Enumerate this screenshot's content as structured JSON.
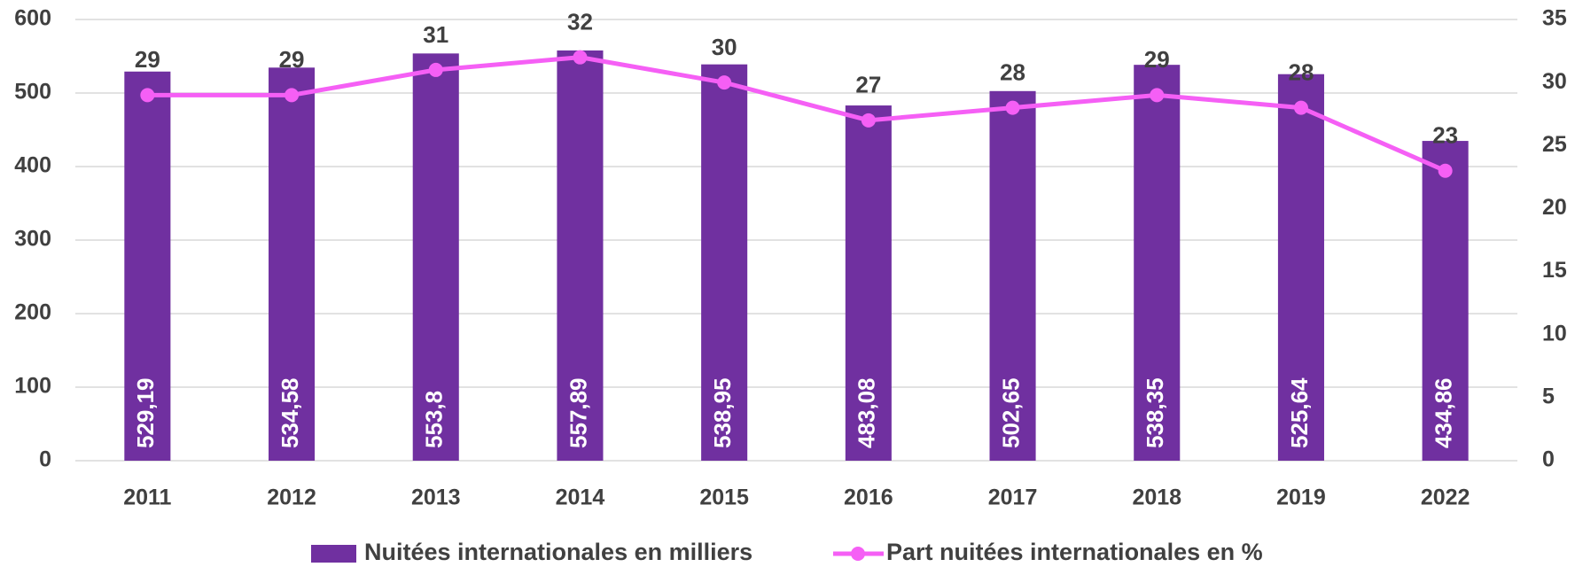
{
  "chart_data": {
    "type": "bar",
    "categories": [
      "2011",
      "2012",
      "2013",
      "2014",
      "2015",
      "2016",
      "2017",
      "2018",
      "2019",
      "2022"
    ],
    "series": [
      {
        "name": "Nuitées internationales en milliers",
        "type": "bar",
        "color": "#7030a0",
        "values": [
          529.19,
          534.58,
          553.8,
          557.89,
          538.95,
          483.08,
          502.65,
          538.35,
          525.64,
          434.86
        ],
        "value_labels": [
          "529,19",
          "534,58",
          "553,8",
          "557,89",
          "538,95",
          "483,08",
          "502,65",
          "538,35",
          "525,64",
          "434,86"
        ]
      },
      {
        "name": "Part nuitées internationales en %",
        "type": "line",
        "axis": "y2",
        "color": "#f55ff5",
        "values": [
          29,
          29,
          31,
          32,
          30,
          27,
          28,
          29,
          28,
          23
        ]
      }
    ],
    "ylim": [
      0,
      600
    ],
    "yticks": [
      0,
      100,
      200,
      300,
      400,
      500,
      600
    ],
    "y2lim": [
      0,
      35
    ],
    "y2ticks": [
      0,
      5,
      10,
      15,
      20,
      25,
      30,
      35
    ],
    "grid": true,
    "legend": "bottom"
  }
}
